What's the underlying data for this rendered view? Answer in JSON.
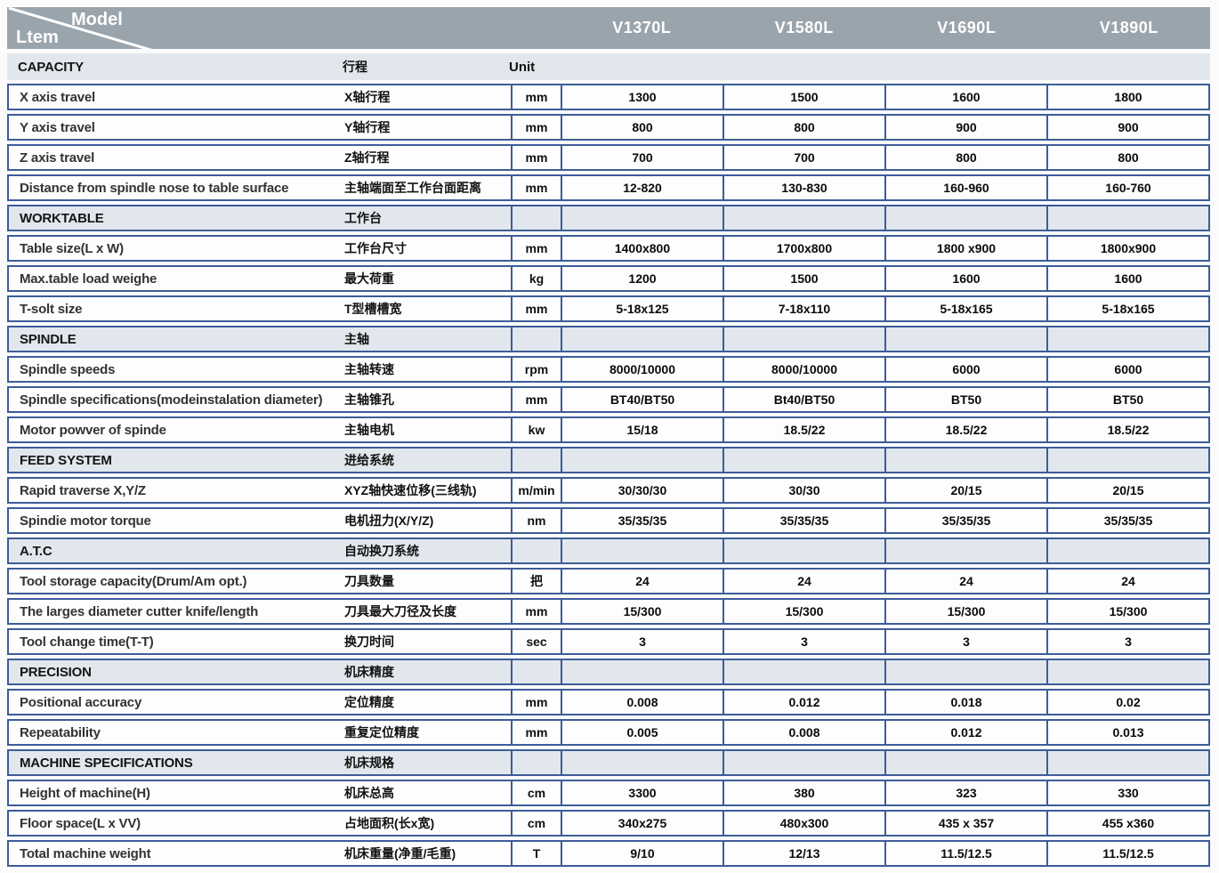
{
  "header": {
    "corner_top_right": "Model",
    "corner_bottom_left": "Ltem",
    "models": [
      "V1370L",
      "V1580L",
      "V1690L",
      "V1890L"
    ]
  },
  "colors": {
    "header_background": "#9aa4ac",
    "section_band_background": "#e1e7ec",
    "cell_border_blue": "#3d5c99",
    "header_text": "#ffffff"
  },
  "sections": [
    {
      "name": "CAPACITY",
      "zh": "行程",
      "unit_header": "Unit",
      "rows": [
        {
          "en": "X axis travel",
          "zh": "X轴行程",
          "unit": "mm",
          "values": [
            "1300",
            "1500",
            "1600",
            "1800"
          ]
        },
        {
          "en": "Y axis travel",
          "zh": "Y轴行程",
          "unit": "mm",
          "values": [
            "800",
            "800",
            "900",
            "900"
          ]
        },
        {
          "en": "Z axis travel",
          "zh": "Z轴行程",
          "unit": "mm",
          "values": [
            "700",
            "700",
            "800",
            "800"
          ]
        },
        {
          "en": "Distance from spindle nose to table surface",
          "zh": "主轴端面至工作台面距离",
          "unit": "mm",
          "values": [
            "12-820",
            "130-830",
            "160-960",
            "160-760"
          ]
        }
      ]
    },
    {
      "name": "WORKTABLE",
      "zh": "工作台",
      "unit_header": "",
      "rows": [
        {
          "en": "Table size(L x W)",
          "zh": "工作台尺寸",
          "unit": "mm",
          "values": [
            "1400x800",
            "1700x800",
            "1800 x900",
            "1800x900"
          ]
        },
        {
          "en": "Max.table load weighe",
          "zh": "最大荷重",
          "unit": "kg",
          "values": [
            "1200",
            "1500",
            "1600",
            "1600"
          ]
        },
        {
          "en": "T-solt size",
          "zh": "T型槽槽宽",
          "unit": "mm",
          "values": [
            "5-18x125",
            "7-18x110",
            "5-18x165",
            "5-18x165"
          ]
        }
      ]
    },
    {
      "name": "SPINDLE",
      "zh": "主轴",
      "unit_header": "",
      "rows": [
        {
          "en": "Spindle speeds",
          "zh": "主轴转速",
          "unit": "rpm",
          "values": [
            "8000/10000",
            "8000/10000",
            "6000",
            "6000"
          ]
        },
        {
          "en": "Spindle specifications(modeinstalation diameter)",
          "zh": "主轴锥孔",
          "unit": "mm",
          "values": [
            "BT40/BT50",
            "Bt40/BT50",
            "BT50",
            "BT50"
          ]
        },
        {
          "en": "Motor powver of spinde",
          "zh": "主轴电机",
          "unit": "kw",
          "values": [
            "15/18",
            "18.5/22",
            "18.5/22",
            "18.5/22"
          ]
        }
      ]
    },
    {
      "name": "FEED SYSTEM",
      "zh": "进给系统",
      "unit_header": "",
      "rows": [
        {
          "en": "Rapid traverse X,Y/Z",
          "zh": "XYZ轴快速位移(三线轨)",
          "unit": "m/min",
          "values": [
            "30/30/30",
            "30/30",
            "20/15",
            "20/15"
          ]
        },
        {
          "en": "Spindie motor torque",
          "zh": "电机扭力(X/Y/Z)",
          "unit": "nm",
          "values": [
            "35/35/35",
            "35/35/35",
            "35/35/35",
            "35/35/35"
          ]
        }
      ]
    },
    {
      "name": "A.T.C",
      "zh": "自动换刀系统",
      "unit_header": "",
      "rows": [
        {
          "en": "Tool storage capacity(Drum/Am opt.)",
          "zh": "刀具数量",
          "unit": "把",
          "values": [
            "24",
            "24",
            "24",
            "24"
          ]
        },
        {
          "en": "The larges diameter cutter knife/length",
          "zh": "刀具最大刀径及长度",
          "unit": "mm",
          "values": [
            "15/300",
            "15/300",
            "15/300",
            "15/300"
          ]
        },
        {
          "en": "Tool change time(T-T)",
          "zh": "换刀时间",
          "unit": "sec",
          "values": [
            "3",
            "3",
            "3",
            "3"
          ]
        }
      ]
    },
    {
      "name": "PRECISION",
      "zh": "机床精度",
      "unit_header": "",
      "rows": [
        {
          "en": "Positional accuracy",
          "zh": "定位精度",
          "unit": "mm",
          "values": [
            "0.008",
            "0.012",
            "0.018",
            "0.02"
          ]
        },
        {
          "en": "Repeatability",
          "zh": "重复定位精度",
          "unit": "mm",
          "values": [
            "0.005",
            "0.008",
            "0.012",
            "0.013"
          ]
        }
      ]
    },
    {
      "name": "MACHINE SPECIFICATIONS",
      "zh": "机床规格",
      "unit_header": "",
      "rows": [
        {
          "en": "Height of machine(H)",
          "zh": "机床总高",
          "unit": "cm",
          "values": [
            "3300",
            "380",
            "323",
            "330"
          ]
        },
        {
          "en": "Floor space(L x VV)",
          "zh": "占地面积(长x宽)",
          "unit": "cm",
          "values": [
            "340x275",
            "480x300",
            "435 x 357",
            "455 x360"
          ]
        },
        {
          "en": "Total machine weight",
          "zh": "机床重量(净重/毛重)",
          "unit": "T",
          "values": [
            "9/10",
            "12/13",
            "11.5/12.5",
            "11.5/12.5"
          ]
        }
      ]
    }
  ]
}
